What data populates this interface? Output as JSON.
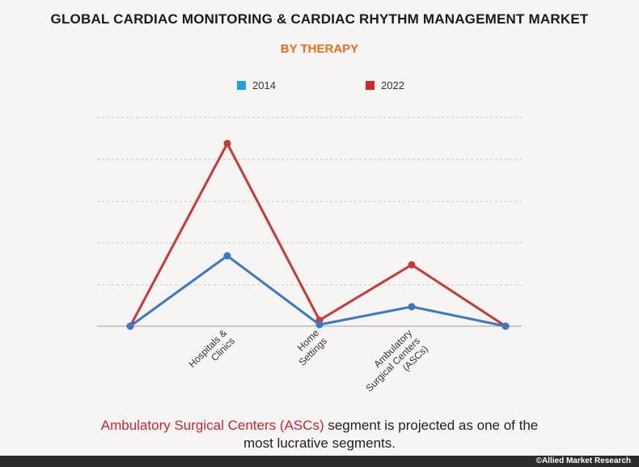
{
  "chart_data": {
    "type": "line",
    "title": "GLOBAL CARDIAC MONITORING & CARDIAC RHYTHM MANAGEMENT MARKET",
    "subtitle": "BY THERAPY",
    "categories": [
      "",
      "Hospitals & Clinics",
      "Home Settings",
      "Ambulatory Surgical Centers (ASCs)",
      ""
    ],
    "tick_lines": [
      [
        "Hospitals &",
        "Clinics"
      ],
      [
        "Home",
        "Settings"
      ],
      [
        "Ambulatory",
        "Surgical Centers",
        "(ASCs)"
      ]
    ],
    "series": [
      {
        "name": "2014",
        "color": "#3a78c8",
        "legend_color": "#1fa0e0",
        "values": [
          0,
          4.7,
          0.1,
          1.3,
          0
        ]
      },
      {
        "name": "2022",
        "color": "#c83a3a",
        "legend_color": "#cc2b2b",
        "values": [
          0,
          12.2,
          0.4,
          4.1,
          0
        ]
      }
    ],
    "ylim": [
      0,
      14
    ],
    "grid": true,
    "legend_position": "top-center",
    "xlabel": "",
    "ylabel": ""
  },
  "footnote": {
    "highlight": "Ambulatory Surgical Centers (ASCs)",
    "rest_line1": " segment is projected as one of the",
    "line2": "most lucrative segments."
  },
  "copyright": "©Allied Market Research"
}
